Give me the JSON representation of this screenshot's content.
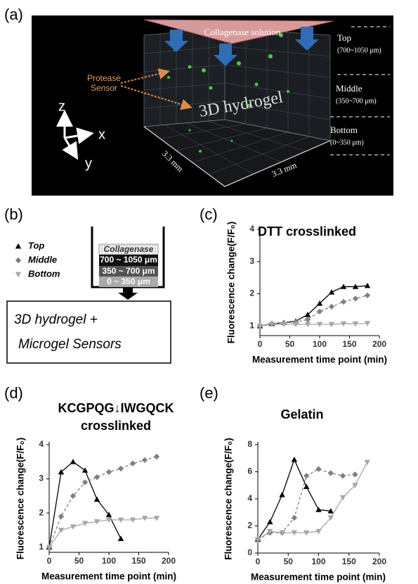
{
  "panel_labels": [
    "(a)",
    "(b)",
    "(c)",
    "(d)",
    "(e)"
  ],
  "figure_a": {
    "solution": "Collagenase solution",
    "sensor": [
      "Protease",
      "Sensor"
    ],
    "gel": "3D hydrogel",
    "layers": [
      {
        "name": "Top",
        "range": "(700~1050 μm)"
      },
      {
        "name": "Middle",
        "range": "(350~700 μm)"
      },
      {
        "name": "Bottom",
        "range": "(0~350 μm)"
      }
    ],
    "dims": [
      "3.3 mm",
      "3.3 mm"
    ],
    "axes": [
      "z",
      "x",
      "y"
    ]
  },
  "figure_b": {
    "layers": [
      "Collagenase",
      "700 ~ 1050 μm",
      "350 ~ 700 μm",
      "0 ~ 350 μm"
    ],
    "box": [
      "3D hydrogel +",
      "Microgel Sensors"
    ]
  },
  "chart_data": [
    {
      "type": "line",
      "title": "DTT crosslinked",
      "xlabel": "Measurement time point (min)",
      "ylabel": "Fluorescence change(F/F₀)",
      "xlim": [
        0,
        200
      ],
      "xticks": [
        0,
        50,
        100,
        150,
        200
      ],
      "ylim": [
        0.7,
        4
      ],
      "yticks": [
        1,
        2,
        3,
        4
      ],
      "series": [
        {
          "name": "Top",
          "color": "#000000",
          "dash": false,
          "marker": "triangle-up",
          "x": [
            0,
            20,
            40,
            60,
            80,
            100,
            120,
            140,
            160,
            180
          ],
          "values": [
            1.0,
            1.07,
            1.1,
            1.15,
            1.35,
            1.7,
            2.05,
            2.22,
            2.22,
            2.25
          ]
        },
        {
          "name": "Middle",
          "color": "#808080",
          "dash": true,
          "marker": "diamond",
          "x": [
            0,
            20,
            40,
            60,
            80,
            100,
            120,
            140,
            160,
            180
          ],
          "values": [
            1.0,
            1.07,
            1.1,
            1.12,
            1.2,
            1.45,
            1.6,
            1.75,
            1.85,
            1.95
          ]
        },
        {
          "name": "Bottom",
          "color": "#a6a6a6",
          "dash": false,
          "marker": "triangle-down",
          "x": [
            0,
            20,
            40,
            60,
            80,
            100,
            120,
            140,
            160,
            180
          ],
          "values": [
            1.0,
            1.05,
            1.05,
            1.05,
            1.05,
            1.05,
            1.05,
            1.07,
            1.07,
            1.08
          ]
        }
      ]
    },
    {
      "type": "line",
      "title": [
        "KCGPQG↓IWGQCK",
        "crosslinked"
      ],
      "xlabel": "Measurement time point (min)",
      "ylabel": "Fluorescence change(F/F₀)",
      "xlim": [
        0,
        200
      ],
      "xticks": [
        0,
        50,
        100,
        150,
        200
      ],
      "ylim": [
        0.85,
        4
      ],
      "yticks": [
        1,
        2,
        3,
        4
      ],
      "series": [
        {
          "color": "#000000",
          "dash": false,
          "marker": "triangle-up",
          "x": [
            0,
            20,
            40,
            60,
            80,
            100,
            120
          ],
          "values": [
            1.0,
            3.2,
            3.5,
            3.25,
            2.4,
            1.95,
            1.25
          ]
        },
        {
          "color": "#808080",
          "dash": true,
          "marker": "diamond",
          "x": [
            0,
            20,
            40,
            60,
            80,
            100,
            120,
            140,
            160,
            180
          ],
          "values": [
            1.0,
            1.9,
            2.5,
            2.9,
            3.05,
            3.2,
            3.3,
            3.45,
            3.55,
            3.65
          ]
        },
        {
          "color": "#a6a6a6",
          "dash": false,
          "marker": "triangle-down",
          "x": [
            0,
            20,
            40,
            60,
            80,
            100,
            120,
            140,
            160,
            180
          ],
          "values": [
            1.0,
            1.5,
            1.6,
            1.7,
            1.75,
            1.8,
            1.8,
            1.8,
            1.85,
            1.85
          ]
        }
      ]
    },
    {
      "type": "line",
      "title": "Gelatin",
      "xlabel": "Measurement time point (min)",
      "ylabel": "Fluorescence change(F/F₀)",
      "xlim": [
        0,
        200
      ],
      "xticks": [
        0,
        50,
        100,
        150,
        200
      ],
      "ylim": [
        0,
        8
      ],
      "yticks": [
        0,
        2,
        4,
        6,
        8
      ],
      "series": [
        {
          "color": "#000000",
          "dash": false,
          "marker": "triangle-up",
          "x": [
            0,
            20,
            40,
            60,
            80,
            100,
            120
          ],
          "values": [
            1.0,
            2.3,
            4.3,
            6.9,
            4.9,
            3.2,
            3.1
          ]
        },
        {
          "color": "#808080",
          "dash": true,
          "marker": "diamond",
          "x": [
            0,
            20,
            40,
            60,
            80,
            100,
            120,
            140,
            160
          ],
          "values": [
            1.0,
            1.5,
            1.5,
            2.6,
            5.7,
            6.2,
            5.9,
            5.7,
            5.8
          ]
        },
        {
          "color": "#a6a6a6",
          "dash": false,
          "marker": "triangle-down",
          "x": [
            0,
            20,
            40,
            60,
            80,
            100,
            120,
            140,
            160,
            180
          ],
          "values": [
            1.0,
            1.6,
            1.5,
            1.5,
            1.5,
            1.6,
            2.6,
            4.1,
            5.0,
            6.7
          ]
        }
      ]
    }
  ]
}
